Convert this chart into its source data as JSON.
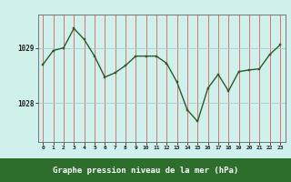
{
  "hours": [
    0,
    1,
    2,
    3,
    4,
    5,
    6,
    7,
    8,
    9,
    10,
    11,
    12,
    13,
    14,
    15,
    16,
    17,
    18,
    19,
    20,
    21,
    22,
    23
  ],
  "pressure": [
    1028.7,
    1028.95,
    1029.0,
    1029.35,
    1029.15,
    1028.85,
    1028.47,
    1028.55,
    1028.68,
    1028.85,
    1028.85,
    1028.85,
    1028.72,
    1028.38,
    1027.88,
    1027.67,
    1028.27,
    1028.52,
    1028.22,
    1028.57,
    1028.6,
    1028.62,
    1028.88,
    1029.05
  ],
  "line_color": "#2d5a27",
  "marker_color": "#2d5a27",
  "plot_bg": "#cff0eb",
  "vgrid_color": "#dd4444",
  "hgrid_color": "#aacccc",
  "xlabel": "Graphe pression niveau de la mer (hPa)",
  "xlabel_bg": "#2d6e2d",
  "xlabel_text_color": "#ffffff",
  "ytick_color": "#222222",
  "xtick_color": "#222222",
  "ytick_labels": [
    1028,
    1029
  ],
  "ylim": [
    1027.3,
    1029.6
  ],
  "xlim": [
    -0.5,
    23.5
  ],
  "fig_bg": "#cff0eb",
  "spine_color": "#666666",
  "figwidth": 3.2,
  "figheight": 2.0,
  "dpi": 100
}
